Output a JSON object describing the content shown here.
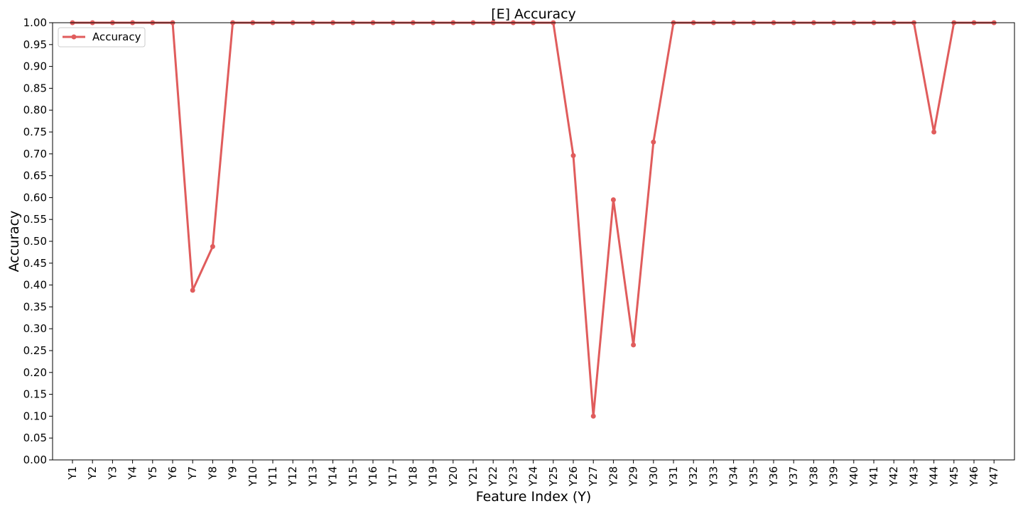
{
  "chart_data": {
    "type": "line",
    "title": "[E] Accuracy",
    "xlabel": "Feature Index (Y)",
    "ylabel": "Accuracy",
    "ylim": [
      0,
      1
    ],
    "yticks": [
      "0.00",
      "0.05",
      "0.10",
      "0.15",
      "0.20",
      "0.25",
      "0.30",
      "0.35",
      "0.40",
      "0.45",
      "0.50",
      "0.55",
      "0.60",
      "0.65",
      "0.70",
      "0.75",
      "0.80",
      "0.85",
      "0.90",
      "0.95",
      "1.00"
    ],
    "categories": [
      "Y1",
      "Y2",
      "Y3",
      "Y4",
      "Y5",
      "Y6",
      "Y7",
      "Y8",
      "Y9",
      "Y10",
      "Y11",
      "Y12",
      "Y13",
      "Y14",
      "Y15",
      "Y16",
      "Y17",
      "Y18",
      "Y19",
      "Y20",
      "Y21",
      "Y22",
      "Y23",
      "Y24",
      "Y25",
      "Y26",
      "Y27",
      "Y28",
      "Y29",
      "Y30",
      "Y31",
      "Y32",
      "Y33",
      "Y34",
      "Y35",
      "Y36",
      "Y37",
      "Y38",
      "Y39",
      "Y40",
      "Y41",
      "Y42",
      "Y43",
      "Y44",
      "Y45",
      "Y46",
      "Y47"
    ],
    "series": [
      {
        "name": "Accuracy",
        "color": "#e05c5c",
        "values": [
          1.0,
          1.0,
          1.0,
          1.0,
          1.0,
          1.0,
          0.388,
          0.488,
          1.0,
          1.0,
          1.0,
          1.0,
          1.0,
          1.0,
          1.0,
          1.0,
          1.0,
          1.0,
          1.0,
          1.0,
          1.0,
          1.0,
          1.0,
          1.0,
          1.0,
          0.696,
          0.1,
          0.595,
          0.263,
          0.727,
          1.0,
          1.0,
          1.0,
          1.0,
          1.0,
          1.0,
          1.0,
          1.0,
          1.0,
          1.0,
          1.0,
          1.0,
          1.0,
          0.75,
          1.0,
          1.0,
          1.0
        ]
      }
    ],
    "grid": false,
    "legend_position": "top-left"
  }
}
